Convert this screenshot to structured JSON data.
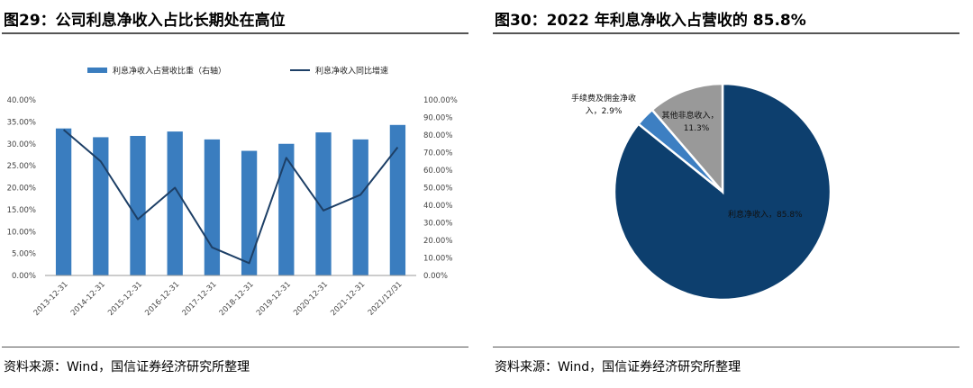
{
  "left": {
    "title": "图29：公司利息净收入占比长期处在高位",
    "source": "资料来源：Wind，国信证券经济研究所整理"
  },
  "right": {
    "title": "图30：2022 年利息净收入占营收的 85.8%",
    "source": "资料来源：Wind，国信证券经济研究所整理"
  },
  "chart_data": [
    {
      "type": "bar",
      "title": "图29：公司利息净收入占比长期处在高位",
      "categories": [
        "2013-12-31",
        "2014-12-31",
        "2015-12-31",
        "2016-12-31",
        "2017-12-31",
        "2018-12-31",
        "2019-12-31",
        "2020-12-31",
        "2021-12-31",
        "2021/12/31"
      ],
      "series": [
        {
          "name": "利息净收入占营收比重（右轴）",
          "kind": "bar",
          "axis": "left",
          "values": [
            33.5,
            31.5,
            31.8,
            32.8,
            31.0,
            28.4,
            30.0,
            32.6,
            31.0,
            34.3
          ]
        },
        {
          "name": "利息净收入同比增速",
          "kind": "line",
          "axis": "right",
          "values": [
            83,
            65,
            32,
            50,
            16,
            7,
            67,
            37,
            46,
            73
          ]
        }
      ],
      "left_axis": {
        "ylim": [
          0,
          40
        ],
        "ticks": [
          "0.00%",
          "5.00%",
          "10.00%",
          "15.00%",
          "20.00%",
          "25.00%",
          "30.00%",
          "35.00%",
          "40.00%"
        ]
      },
      "right_axis": {
        "ylim": [
          0,
          100
        ],
        "ticks": [
          "0.00%",
          "10.00%",
          "20.00%",
          "30.00%",
          "40.00%",
          "50.00%",
          "60.00%",
          "70.00%",
          "80.00%",
          "90.00%",
          "100.00%"
        ]
      },
      "colors": {
        "bar": "#3a7dbf",
        "line": "#1d3f66"
      }
    },
    {
      "type": "pie",
      "title": "图30：2022 年利息净收入占营收的 85.8%",
      "slices": [
        {
          "name": "利息净收入",
          "value": 85.8,
          "label": "利息净收入，85.8%",
          "color": "#0d3f6e"
        },
        {
          "name": "手续费及佣金净收入",
          "value": 2.9,
          "label_lines": [
            "手续费及佣金净收",
            "入，2.9%"
          ],
          "color": "#3d7fc2"
        },
        {
          "name": "其他非息收入",
          "value": 11.3,
          "label_lines": [
            "其他非息收入，",
            "11.3%"
          ],
          "color": "#999999"
        }
      ]
    }
  ]
}
